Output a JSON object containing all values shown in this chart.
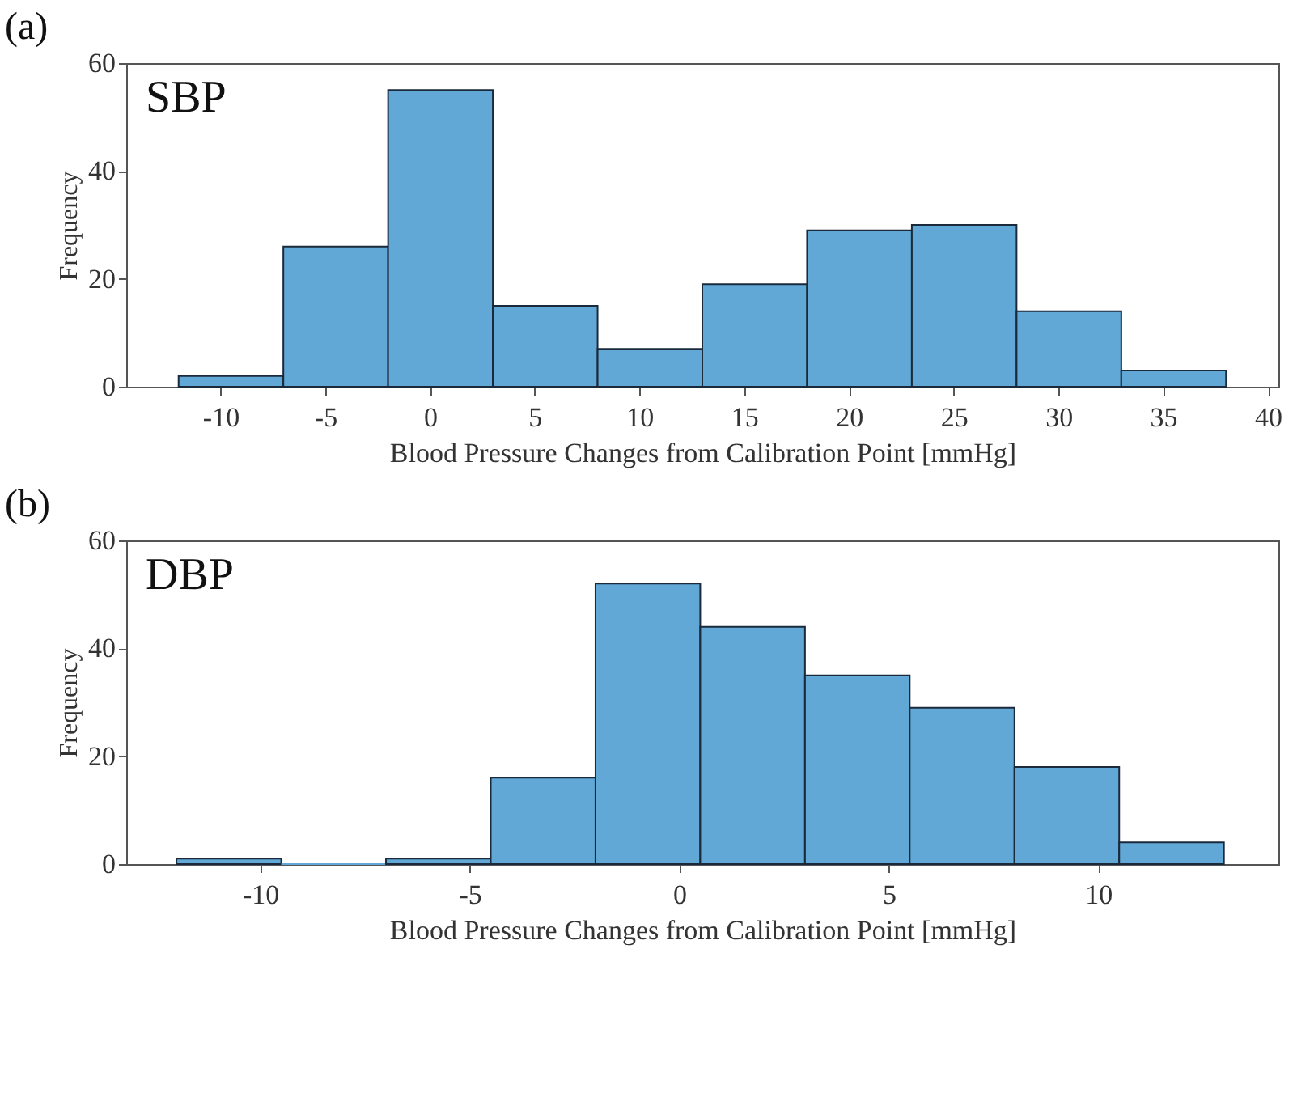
{
  "chart_data": [
    {
      "type": "histogram",
      "xlabel": "Blood Pressure Changes from Calibration Point [mmHg]",
      "ylabel": "Frequency",
      "annotations": [
        "(a)",
        "SBP"
      ],
      "color": "#62a8d6",
      "bins": [
        -12,
        -7,
        -2,
        3,
        8,
        13,
        18,
        23,
        28,
        33,
        38
      ],
      "values": [
        2,
        26,
        55,
        15,
        7,
        19,
        29,
        30,
        14,
        3
      ],
      "xlim": [
        -14.5,
        40.5
      ],
      "xticks": [
        -10,
        -5,
        0,
        5,
        10,
        15,
        20,
        25,
        30,
        35,
        40
      ],
      "ylim": [
        0,
        60
      ],
      "yticks": [
        0,
        20,
        40,
        60
      ],
      "grid": false
    },
    {
      "type": "histogram",
      "xlabel": "Blood Pressure Changes from Calibration Point [mmHg]",
      "ylabel": "Frequency",
      "annotations": [
        "(b)",
        "DBP"
      ],
      "color": "#62a8d6",
      "bins": [
        -12,
        -9.5,
        -7,
        -4.5,
        -2,
        0.5,
        3,
        5.5,
        8,
        10.5,
        13
      ],
      "values": [
        1,
        0,
        1,
        16,
        52,
        44,
        35,
        29,
        18,
        4
      ],
      "xlim": [
        -13.2,
        14.3
      ],
      "xticks": [
        -10,
        -5,
        0,
        5,
        10
      ],
      "ylim": [
        0,
        60
      ],
      "yticks": [
        0,
        20,
        40,
        60
      ],
      "grid": false
    }
  ]
}
